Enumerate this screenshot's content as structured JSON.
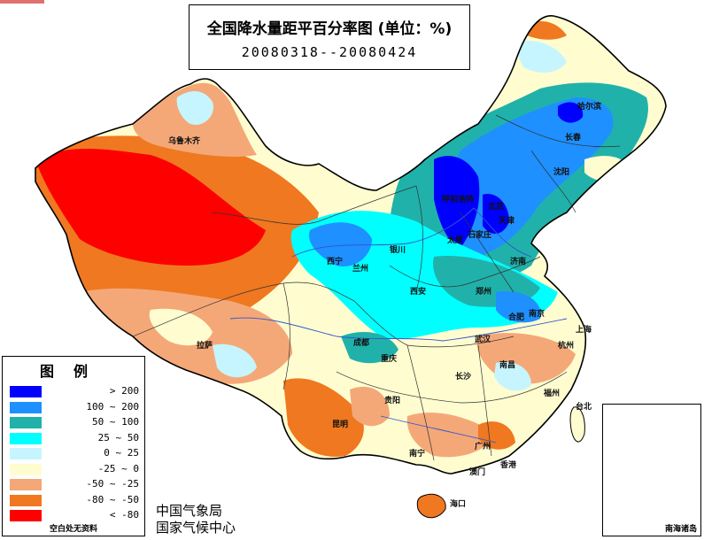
{
  "title": {
    "main": "全国降水量距平百分率图 (单位：%)",
    "dates": "20080318--20080424"
  },
  "legend": {
    "title": "图例",
    "items": [
      {
        "label": "> 200",
        "color": "#0000ff"
      },
      {
        "label": "100 ~ 200",
        "color": "#1e90ff"
      },
      {
        "label": "50 ~ 100",
        "color": "#20b2aa"
      },
      {
        "label": "25 ~ 50",
        "color": "#00ffff"
      },
      {
        "label": "0 ~ 25",
        "color": "#c6f5ff"
      },
      {
        "label": "-25 ~ 0",
        "color": "#fffdd0"
      },
      {
        "label": "-50 ~ -25",
        "color": "#f4a878"
      },
      {
        "label": "-80 ~ -50",
        "color": "#f07820"
      },
      {
        "label": "< -80",
        "color": "#ff0000"
      }
    ],
    "note": "空白处无资料"
  },
  "issuer": {
    "line1": "中国气象局",
    "line2": "国家气候中心"
  },
  "inset": {
    "label": "南海诸岛"
  },
  "cities": {
    "urumqi": "乌鲁木齐",
    "harbin": "哈尔滨",
    "changchun": "长春",
    "shenyang": "沈阳",
    "hohhot": "呼和浩特",
    "beijing": "北京",
    "tianjin": "天津",
    "taiyuan": "太原",
    "shijiazhuang": "石家庄",
    "jinan": "济南",
    "yinchuan": "银川",
    "xining": "西宁",
    "lanzhou": "兰州",
    "xian": "西安",
    "zhengzhou": "郑州",
    "hefei": "合肥",
    "nanjing": "南京",
    "shanghai": "上海",
    "wuhan": "武汉",
    "hangzhou": "杭州",
    "nanchang": "南昌",
    "fuzhou": "福州",
    "taibei": "台北",
    "changsha": "长沙",
    "chengdu": "成都",
    "chongqing": "重庆",
    "lhasa": "拉萨",
    "guiyang": "贵阳",
    "kunming": "昆明",
    "nanning": "南宁",
    "guangzhou": "广州",
    "hongkong": "香港",
    "macao": "澳门",
    "haikou": "海口"
  }
}
